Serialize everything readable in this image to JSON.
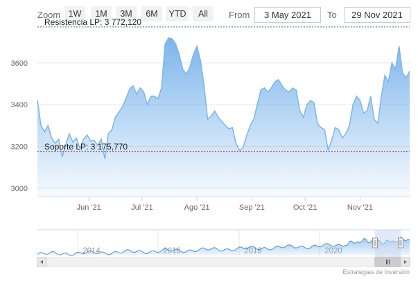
{
  "toolbar": {
    "zoom_label": "Zoom",
    "range_buttons": [
      "1W",
      "1M",
      "3M",
      "6M",
      "YTD",
      "All"
    ],
    "from_label": "From",
    "from_value": "3 May 2021",
    "to_label": "To",
    "to_value": "29 Nov 2021"
  },
  "credit": "Estrategias de Inversión",
  "colors": {
    "series_line": "#7cb5ec",
    "resistance_line": "#2e8b2e",
    "support_line": "#8b1a1a",
    "navigator_mask": "#c9d9ef"
  },
  "chart_data": {
    "type": "area",
    "x_axis_labels": [
      "Jun '21",
      "Jul '21",
      "Ago '21",
      "Sep '21",
      "Oct '21",
      "Nov '21"
    ],
    "y_ticks": [
      3000,
      3200,
      3400,
      3600
    ],
    "ylim": [
      2960,
      3775
    ],
    "xlim": [
      "2021-05-03",
      "2021-11-29"
    ],
    "series": [
      {
        "values": [
          [
            "2021-05-03",
            3420
          ],
          [
            "2021-05-05",
            3300
          ],
          [
            "2021-05-07",
            3270
          ],
          [
            "2021-05-09",
            3300
          ],
          [
            "2021-05-11",
            3240
          ],
          [
            "2021-05-13",
            3215
          ],
          [
            "2021-05-15",
            3235
          ],
          [
            "2021-05-17",
            3150
          ],
          [
            "2021-05-19",
            3210
          ],
          [
            "2021-05-21",
            3260
          ],
          [
            "2021-05-23",
            3220
          ],
          [
            "2021-05-25",
            3240
          ],
          [
            "2021-05-27",
            3190
          ],
          [
            "2021-05-29",
            3235
          ],
          [
            "2021-05-31",
            3255
          ],
          [
            "2021-06-02",
            3225
          ],
          [
            "2021-06-04",
            3230
          ],
          [
            "2021-06-06",
            3205
          ],
          [
            "2021-06-08",
            3235
          ],
          [
            "2021-06-10",
            3140
          ],
          [
            "2021-06-12",
            3260
          ],
          [
            "2021-06-14",
            3280
          ],
          [
            "2021-06-16",
            3340
          ],
          [
            "2021-06-18",
            3365
          ],
          [
            "2021-06-20",
            3390
          ],
          [
            "2021-06-22",
            3430
          ],
          [
            "2021-06-24",
            3475
          ],
          [
            "2021-06-26",
            3490
          ],
          [
            "2021-06-28",
            3450
          ],
          [
            "2021-06-30",
            3480
          ],
          [
            "2021-07-02",
            3460
          ],
          [
            "2021-07-04",
            3400
          ],
          [
            "2021-07-06",
            3440
          ],
          [
            "2021-07-08",
            3440
          ],
          [
            "2021-07-10",
            3430
          ],
          [
            "2021-07-12",
            3480
          ],
          [
            "2021-07-14",
            3690
          ],
          [
            "2021-07-16",
            3720
          ],
          [
            "2021-07-18",
            3715
          ],
          [
            "2021-07-20",
            3690
          ],
          [
            "2021-07-22",
            3640
          ],
          [
            "2021-07-24",
            3570
          ],
          [
            "2021-07-26",
            3545
          ],
          [
            "2021-07-28",
            3580
          ],
          [
            "2021-07-30",
            3640
          ],
          [
            "2021-08-01",
            3680
          ],
          [
            "2021-08-03",
            3610
          ],
          [
            "2021-08-05",
            3490
          ],
          [
            "2021-08-07",
            3330
          ],
          [
            "2021-08-09",
            3345
          ],
          [
            "2021-08-11",
            3370
          ],
          [
            "2021-08-13",
            3340
          ],
          [
            "2021-08-15",
            3320
          ],
          [
            "2021-08-17",
            3300
          ],
          [
            "2021-08-19",
            3285
          ],
          [
            "2021-08-21",
            3290
          ],
          [
            "2021-08-23",
            3215
          ],
          [
            "2021-08-25",
            3180
          ],
          [
            "2021-08-27",
            3195
          ],
          [
            "2021-08-29",
            3250
          ],
          [
            "2021-08-31",
            3300
          ],
          [
            "2021-09-02",
            3330
          ],
          [
            "2021-09-04",
            3400
          ],
          [
            "2021-09-06",
            3470
          ],
          [
            "2021-09-08",
            3480
          ],
          [
            "2021-09-10",
            3460
          ],
          [
            "2021-09-12",
            3480
          ],
          [
            "2021-09-14",
            3510
          ],
          [
            "2021-09-16",
            3520
          ],
          [
            "2021-09-18",
            3490
          ],
          [
            "2021-09-20",
            3470
          ],
          [
            "2021-09-22",
            3460
          ],
          [
            "2021-09-24",
            3480
          ],
          [
            "2021-09-26",
            3470
          ],
          [
            "2021-09-28",
            3370
          ],
          [
            "2021-09-30",
            3340
          ],
          [
            "2021-10-02",
            3400
          ],
          [
            "2021-10-04",
            3420
          ],
          [
            "2021-10-06",
            3410
          ],
          [
            "2021-10-08",
            3310
          ],
          [
            "2021-10-10",
            3290
          ],
          [
            "2021-10-12",
            3280
          ],
          [
            "2021-10-14",
            3180
          ],
          [
            "2021-10-16",
            3230
          ],
          [
            "2021-10-18",
            3290
          ],
          [
            "2021-10-20",
            3280
          ],
          [
            "2021-10-22",
            3240
          ],
          [
            "2021-10-24",
            3260
          ],
          [
            "2021-10-26",
            3300
          ],
          [
            "2021-10-28",
            3400
          ],
          [
            "2021-10-30",
            3440
          ],
          [
            "2021-11-01",
            3420
          ],
          [
            "2021-11-03",
            3360
          ],
          [
            "2021-11-05",
            3370
          ],
          [
            "2021-11-07",
            3440
          ],
          [
            "2021-11-09",
            3330
          ],
          [
            "2021-11-11",
            3310
          ],
          [
            "2021-11-13",
            3440
          ],
          [
            "2021-11-15",
            3540
          ],
          [
            "2021-11-17",
            3510
          ],
          [
            "2021-11-19",
            3600
          ],
          [
            "2021-11-21",
            3570
          ],
          [
            "2021-11-23",
            3680
          ],
          [
            "2021-11-25",
            3550
          ],
          [
            "2021-11-27",
            3530
          ],
          [
            "2021-11-29",
            3560
          ]
        ]
      }
    ],
    "reference_lines": [
      {
        "label": "Resistencia LP: 3 772,120",
        "value": 3772.12,
        "style": "dashed",
        "color": "#2e8b2e"
      },
      {
        "label": "Soporte LP: 3 175,770",
        "value": 3175.77,
        "style": "dashed",
        "color": "#8b1a1a"
      }
    ],
    "navigator": {
      "year_labels": [
        "2014",
        "2016",
        "2018",
        "2020"
      ]
    },
    "grid": true
  }
}
